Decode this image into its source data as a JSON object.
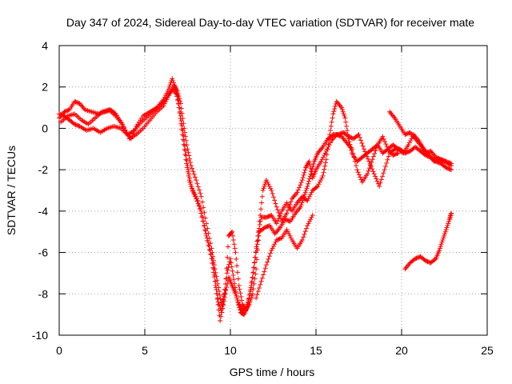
{
  "chart_data": {
    "type": "scatter",
    "title": "Day 347 of 2024, Sidereal Day-to-day VTEC variation (SDTVAR) for receiver mate",
    "xlabel": "GPS time / hours",
    "ylabel": "SDTVAR / TECUs",
    "xlim": [
      0,
      25
    ],
    "ylim": [
      -10,
      4
    ],
    "xticks": [
      0,
      5,
      10,
      15,
      20,
      25
    ],
    "yticks": [
      -10,
      -8,
      -6,
      -4,
      -2,
      0,
      2,
      4
    ],
    "grid": true,
    "marker": "plus",
    "series": [
      {
        "name": "SDTVAR",
        "color": "#ff0000",
        "tracks": [
          [
            [
              0.0,
              0.5
            ],
            [
              0.3,
              0.8
            ],
            [
              0.6,
              0.9
            ],
            [
              0.9,
              1.3
            ],
            [
              1.2,
              1.2
            ],
            [
              1.5,
              0.9
            ],
            [
              1.9,
              0.8
            ],
            [
              2.3,
              0.7
            ],
            [
              2.7,
              0.8
            ],
            [
              3.0,
              0.9
            ],
            [
              3.3,
              0.7
            ],
            [
              3.6,
              0.3
            ],
            [
              3.9,
              -0.2
            ],
            [
              4.2,
              -0.5
            ],
            [
              4.5,
              0.1
            ],
            [
              4.9,
              0.6
            ],
            [
              5.3,
              0.8
            ],
            [
              5.7,
              1.0
            ],
            [
              6.1,
              1.4
            ],
            [
              6.4,
              1.9
            ],
            [
              6.6,
              2.4
            ],
            [
              6.8,
              1.9
            ],
            [
              7.0,
              1.0
            ],
            [
              7.2,
              -0.3
            ],
            [
              7.4,
              -1.5
            ],
            [
              7.6,
              -2.5
            ],
            [
              7.8,
              -3.0
            ],
            [
              8.1,
              -3.5
            ],
            [
              8.4,
              -4.5
            ],
            [
              8.7,
              -5.5
            ],
            [
              9.0,
              -6.5
            ],
            [
              9.2,
              -8.0
            ],
            [
              9.4,
              -9.3
            ],
            [
              9.6,
              -8.3
            ],
            [
              9.8,
              -7.0
            ],
            [
              10.0,
              -6.3
            ],
            [
              10.2,
              -7.3
            ],
            [
              10.4,
              -8.3
            ],
            [
              10.6,
              -8.9
            ],
            [
              10.8,
              -9.0
            ],
            [
              11.0,
              -8.6
            ],
            [
              11.2,
              -7.7
            ],
            [
              11.4,
              -6.5
            ],
            [
              11.6,
              -5.2
            ],
            [
              11.8,
              -4.3
            ],
            [
              12.1,
              -4.3
            ],
            [
              12.4,
              -4.2
            ],
            [
              12.7,
              -4.6
            ],
            [
              13.0,
              -4.0
            ],
            [
              13.3,
              -3.6
            ],
            [
              13.6,
              -4.0
            ],
            [
              13.9,
              -3.6
            ],
            [
              14.2,
              -3.3
            ],
            [
              14.5,
              -3.5
            ],
            [
              14.8,
              -3.0
            ],
            [
              15.1,
              -2.8
            ],
            [
              15.4,
              -2.3
            ],
            [
              15.6,
              -1.5
            ],
            [
              15.8,
              -0.3
            ],
            [
              16.0,
              0.7
            ],
            [
              16.2,
              1.3
            ],
            [
              16.5,
              1.0
            ],
            [
              16.7,
              0.5
            ],
            [
              16.9,
              -0.5
            ],
            [
              17.1,
              -1.2
            ],
            [
              17.4,
              -1.6
            ],
            [
              17.7,
              -1.4
            ],
            [
              18.0,
              -1.2
            ],
            [
              18.3,
              -1.0
            ],
            [
              18.6,
              -0.8
            ],
            [
              18.9,
              -1.2
            ],
            [
              19.2,
              -1.0
            ],
            [
              19.5,
              -0.8
            ],
            [
              19.8,
              -1.0
            ],
            [
              20.1,
              -1.2
            ],
            [
              20.4,
              -0.8
            ],
            [
              20.7,
              -0.3
            ],
            [
              21.0,
              -0.6
            ],
            [
              21.3,
              -1.0
            ],
            [
              21.6,
              -1.3
            ],
            [
              21.9,
              -1.6
            ],
            [
              22.2,
              -1.5
            ],
            [
              22.5,
              -1.6
            ],
            [
              22.9,
              -1.8
            ]
          ],
          [
            [
              0.0,
              0.7
            ],
            [
              0.3,
              0.6
            ],
            [
              0.6,
              0.4
            ],
            [
              0.9,
              0.2
            ],
            [
              1.2,
              0.1
            ],
            [
              1.6,
              -0.1
            ],
            [
              2.0,
              0.0
            ],
            [
              2.4,
              -0.2
            ],
            [
              2.8,
              0.0
            ],
            [
              3.2,
              0.1
            ],
            [
              3.6,
              0.0
            ],
            [
              4.0,
              -0.3
            ],
            [
              4.4,
              -0.1
            ],
            [
              4.8,
              0.3
            ],
            [
              5.2,
              0.6
            ],
            [
              5.6,
              0.9
            ],
            [
              6.0,
              1.2
            ],
            [
              6.3,
              1.5
            ],
            [
              6.6,
              1.9
            ],
            [
              6.9,
              1.6
            ],
            [
              7.1,
              0.6
            ],
            [
              7.3,
              -0.6
            ],
            [
              7.5,
              -1.8
            ],
            [
              7.7,
              -2.8
            ],
            [
              8.0,
              -3.4
            ],
            [
              8.3,
              -4.0
            ],
            [
              8.6,
              -5.2
            ],
            [
              8.9,
              -6.3
            ],
            [
              9.1,
              -7.4
            ],
            [
              9.3,
              -8.4
            ],
            [
              9.5,
              -8.9
            ],
            [
              9.7,
              -8.0
            ],
            [
              9.9,
              -7.2
            ],
            [
              10.1,
              -7.6
            ],
            [
              10.3,
              -8.0
            ],
            [
              10.5,
              -8.5
            ],
            [
              10.7,
              -8.8
            ],
            [
              10.9,
              -8.7
            ],
            [
              11.1,
              -8.2
            ],
            [
              11.3,
              -7.2
            ],
            [
              11.5,
              -6.0
            ],
            [
              11.7,
              -5.0
            ],
            [
              12.0,
              -4.8
            ],
            [
              12.3,
              -4.7
            ],
            [
              12.6,
              -5.1
            ],
            [
              12.9,
              -4.8
            ],
            [
              13.2,
              -4.4
            ],
            [
              13.5,
              -4.5
            ],
            [
              13.8,
              -4.1
            ],
            [
              14.1,
              -3.8
            ],
            [
              14.3,
              -3.3
            ],
            [
              14.5,
              -2.8
            ],
            [
              14.7,
              -2.2
            ],
            [
              14.9,
              -1.6
            ],
            [
              15.1,
              -1.2
            ],
            [
              15.4,
              -0.9
            ],
            [
              15.7,
              -0.5
            ],
            [
              16.0,
              -0.3
            ],
            [
              16.3,
              -0.3
            ],
            [
              16.6,
              -0.2
            ],
            [
              16.9,
              -0.4
            ],
            [
              17.2,
              -0.5
            ],
            [
              17.5,
              -0.3
            ],
            [
              17.8,
              -1.0
            ],
            [
              18.1,
              -1.6
            ],
            [
              18.4,
              -2.2
            ],
            [
              18.7,
              -2.8
            ],
            [
              19.0,
              -2.0
            ],
            [
              19.3,
              -1.2
            ],
            [
              19.6,
              -1.0
            ],
            [
              19.9,
              -1.0
            ],
            [
              20.2,
              -1.2
            ],
            [
              20.5,
              -1.1
            ],
            [
              20.8,
              -0.9
            ],
            [
              21.1,
              -1.1
            ],
            [
              21.4,
              -1.3
            ],
            [
              21.7,
              -1.4
            ],
            [
              22.0,
              -1.6
            ],
            [
              22.3,
              -1.7
            ],
            [
              22.6,
              -1.9
            ],
            [
              22.9,
              -2.0
            ]
          ],
          [
            [
              0.1,
              0.3
            ],
            [
              0.5,
              0.6
            ],
            [
              0.9,
              0.7
            ],
            [
              1.3,
              0.4
            ],
            [
              1.7,
              0.2
            ],
            [
              2.1,
              0.5
            ],
            [
              2.5,
              0.8
            ],
            [
              2.9,
              0.9
            ],
            [
              3.3,
              0.6
            ],
            [
              3.7,
              0.2
            ],
            [
              4.1,
              -0.5
            ],
            [
              4.5,
              -0.3
            ],
            [
              4.9,
              0.0
            ],
            [
              5.3,
              0.4
            ],
            [
              5.7,
              0.8
            ],
            [
              6.1,
              1.1
            ],
            [
              6.4,
              1.6
            ],
            [
              6.7,
              2.1
            ],
            [
              6.9,
              1.8
            ],
            [
              7.1,
              1.2
            ],
            [
              7.3,
              0.0
            ],
            [
              7.5,
              -1.0
            ],
            [
              7.7,
              -1.8
            ],
            [
              8.0,
              -2.5
            ],
            [
              8.3,
              -3.3
            ],
            [
              8.6,
              -4.6
            ],
            [
              8.9,
              -5.8
            ],
            [
              9.1,
              -6.8
            ],
            [
              9.3,
              -7.7
            ],
            [
              9.5,
              -8.6
            ],
            [
              9.7,
              -7.8
            ],
            [
              9.9,
              -5.2
            ],
            [
              10.1,
              -5.0
            ],
            [
              10.3,
              -6.0
            ],
            [
              10.5,
              -7.6
            ],
            [
              10.7,
              -8.5
            ],
            [
              10.9,
              -8.8
            ],
            [
              11.1,
              -8.5
            ],
            [
              11.3,
              -8.0
            ],
            [
              11.5,
              -6.8
            ],
            [
              11.7,
              -4.5
            ],
            [
              11.9,
              -3.0
            ],
            [
              12.1,
              -2.5
            ],
            [
              12.4,
              -3.0
            ],
            [
              12.7,
              -3.8
            ],
            [
              13.0,
              -4.5
            ],
            [
              13.3,
              -4.1
            ],
            [
              13.6,
              -3.4
            ],
            [
              13.9,
              -3.1
            ],
            [
              14.2,
              -2.5
            ],
            [
              14.4,
              -1.9
            ],
            [
              14.6,
              -1.6
            ],
            [
              14.8,
              -2.4
            ],
            [
              15.0,
              -2.0
            ],
            [
              15.3,
              -1.6
            ],
            [
              15.6,
              -1.1
            ],
            [
              15.9,
              -0.6
            ],
            [
              16.2,
              -0.3
            ],
            [
              16.5,
              -0.4
            ],
            [
              16.8,
              -0.7
            ],
            [
              17.1,
              -1.0
            ],
            [
              17.4,
              -2.0
            ],
            [
              17.7,
              -2.6
            ],
            [
              18.0,
              -2.2
            ],
            [
              18.3,
              -1.5
            ],
            [
              18.6,
              -0.8
            ],
            [
              18.9,
              -0.4
            ],
            [
              19.2,
              -1.0
            ],
            [
              19.5,
              -1.3
            ],
            [
              19.8,
              -1.2
            ]
          ],
          [
            [
              19.3,
              0.8
            ],
            [
              19.6,
              0.5
            ],
            [
              19.9,
              0.1
            ],
            [
              20.2,
              -0.3
            ],
            [
              20.5,
              -0.2
            ],
            [
              20.8,
              -0.5
            ],
            [
              21.1,
              -0.8
            ],
            [
              21.4,
              -1.2
            ],
            [
              21.7,
              -1.1
            ],
            [
              22.0,
              -1.4
            ],
            [
              22.3,
              -1.5
            ],
            [
              22.6,
              -1.6
            ],
            [
              22.9,
              -1.7
            ]
          ],
          [
            [
              11.5,
              -8.2
            ],
            [
              11.8,
              -7.4
            ],
            [
              12.1,
              -6.6
            ],
            [
              12.4,
              -5.9
            ],
            [
              12.7,
              -5.4
            ],
            [
              13.0,
              -5.3
            ],
            [
              13.3,
              -4.9
            ],
            [
              13.6,
              -5.4
            ],
            [
              13.9,
              -5.8
            ],
            [
              14.2,
              -5.4
            ],
            [
              14.5,
              -4.7
            ],
            [
              14.8,
              -4.2
            ]
          ],
          [
            [
              20.2,
              -6.8
            ],
            [
              20.5,
              -6.5
            ],
            [
              20.8,
              -6.3
            ],
            [
              21.1,
              -6.2
            ],
            [
              21.4,
              -6.4
            ],
            [
              21.7,
              -6.5
            ],
            [
              22.0,
              -6.3
            ],
            [
              22.2,
              -5.9
            ],
            [
              22.4,
              -5.4
            ],
            [
              22.6,
              -4.9
            ],
            [
              22.8,
              -4.4
            ],
            [
              22.9,
              -4.1
            ]
          ]
        ]
      }
    ]
  }
}
